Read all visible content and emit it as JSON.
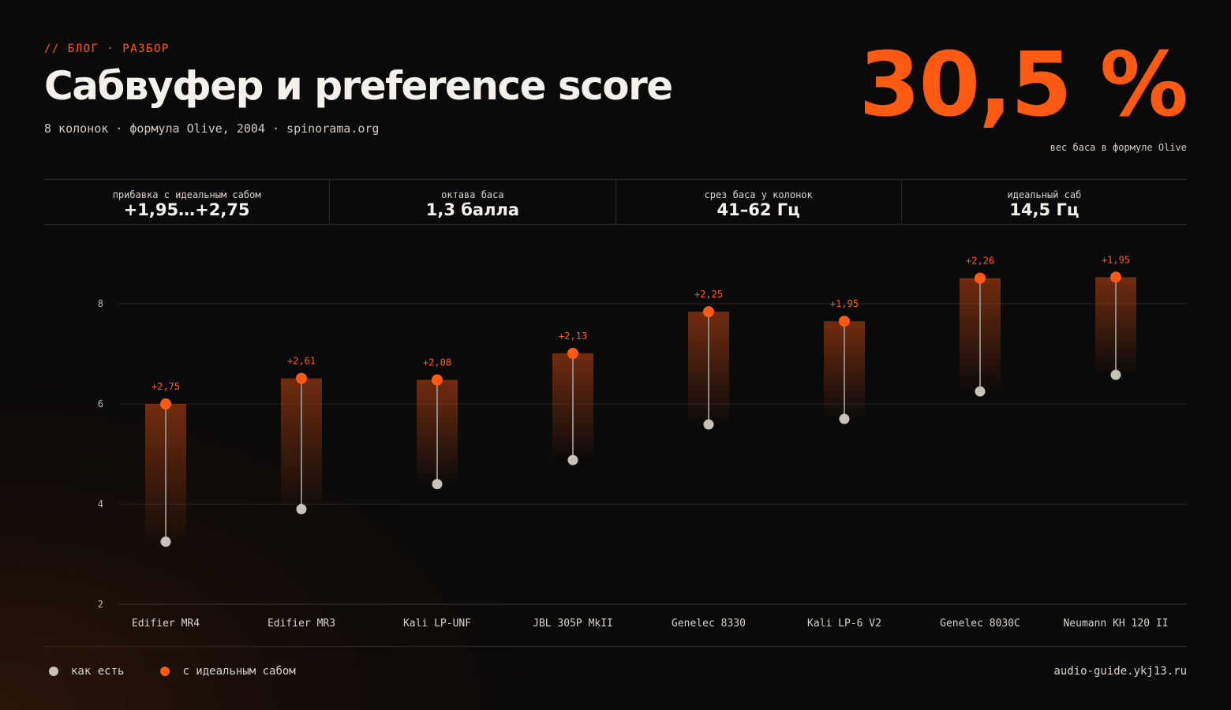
{
  "header": {
    "kicker": "// БЛОГ · РАЗБОР",
    "title": "Сабвуфер и preference score",
    "subtitle": "8 колонок · формула Olive, 2004 · spinorama.org",
    "big_number": "30,5 %",
    "big_caption": "вес баса в формуле Olive"
  },
  "stats": [
    {
      "label": "прибавка с идеальным сабом",
      "value": "+1,95…+2,75"
    },
    {
      "label": "октава баса",
      "value": "1,3 балла"
    },
    {
      "label": "срез баса у колонок",
      "value": "41–62 Гц"
    },
    {
      "label": "идеальный саб",
      "value": "14,5 Гц"
    }
  ],
  "colors": {
    "accent": "#ff5a14",
    "base_point": "#c8c2bb",
    "background": "#0b0a0a",
    "grid": "#242120"
  },
  "chart_data": {
    "type": "dumbbell",
    "title": "",
    "xlabel": "",
    "ylabel": "",
    "ylim": [
      2,
      9
    ],
    "yticks": [
      2,
      4,
      6,
      8
    ],
    "grid": true,
    "categories": [
      "Edifier MR4",
      "Edifier MR3",
      "Kali LP-UNF",
      "JBL 305P MkII",
      "Genelec 8330",
      "Kali LP-6 V2",
      "Genelec 8030C",
      "Neumann KH 120 II"
    ],
    "series": [
      {
        "name": "как есть",
        "values": [
          3.25,
          3.9,
          4.4,
          4.88,
          5.59,
          5.7,
          6.25,
          6.58
        ]
      },
      {
        "name": "с идеальным сабом",
        "values": [
          6.0,
          6.51,
          6.48,
          7.01,
          7.84,
          7.65,
          8.51,
          8.53
        ]
      }
    ],
    "delta_labels": [
      "+2,75",
      "+2,61",
      "+2,08",
      "+2,13",
      "+2,25",
      "+1,95",
      "+2,26",
      "+1,95"
    ],
    "legend_position": "bottom-left"
  },
  "legend": [
    {
      "label": "как есть"
    },
    {
      "label": "с идеальным сабом"
    }
  ],
  "footer": "audio-guide.ykj13.ru"
}
